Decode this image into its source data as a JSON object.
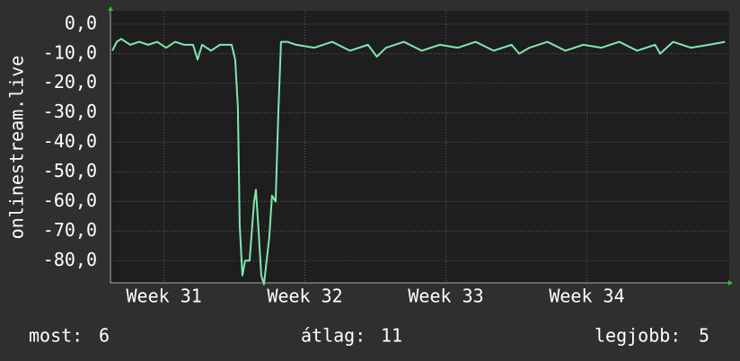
{
  "chart_data": {
    "type": "line",
    "y_label": "onlinestream.live",
    "xlim": [
      30.62,
      35.01
    ],
    "xticks": [
      {
        "value": 31,
        "label": "Week 31"
      },
      {
        "value": 32,
        "label": "Week 32"
      },
      {
        "value": 33,
        "label": "Week 33"
      },
      {
        "value": 34,
        "label": "Week 34"
      }
    ],
    "ylim": [
      -87.5,
      4.5
    ],
    "yticks": [
      {
        "value": 0,
        "label": "0,0"
      },
      {
        "value": -10,
        "label": "-10,0"
      },
      {
        "value": -20,
        "label": "-20,0"
      },
      {
        "value": -30,
        "label": "-30,0"
      },
      {
        "value": -40,
        "label": "-40,0"
      },
      {
        "value": -50,
        "label": "-50,0"
      },
      {
        "value": -60,
        "label": "-60,0"
      },
      {
        "value": -70,
        "label": "-70,0"
      },
      {
        "value": -80,
        "label": "-80,0"
      }
    ],
    "grid": true,
    "x": [
      30.633,
      30.665,
      30.696,
      30.76,
      30.824,
      30.888,
      30.951,
      31.015,
      31.079,
      31.142,
      31.206,
      31.238,
      31.27,
      31.333,
      31.397,
      31.48,
      31.505,
      31.524,
      31.537,
      31.556,
      31.575,
      31.607,
      31.639,
      31.652,
      31.671,
      31.69,
      31.709,
      31.728,
      31.747,
      31.766,
      31.792,
      31.811,
      31.83,
      31.875,
      31.938,
      32.065,
      32.193,
      32.32,
      32.447,
      32.51,
      32.575,
      32.702,
      32.829,
      32.957,
      33.084,
      33.211,
      33.339,
      33.466,
      33.52,
      33.593,
      33.72,
      33.848,
      33.975,
      34.102,
      34.23,
      34.357,
      34.484,
      34.52,
      34.612,
      34.739,
      34.866,
      34.98
    ],
    "series": [
      {
        "name": "onlinestream.live",
        "color": "#7fe8b0",
        "values": [
          -9,
          -6,
          -5,
          -7,
          -6,
          -7,
          -6,
          -8,
          -6,
          -7,
          -7,
          -12,
          -7,
          -9,
          -7,
          -7,
          -12,
          -28,
          -68,
          -85,
          -80,
          -80,
          -60,
          -56,
          -70,
          -85,
          -88,
          -80,
          -72,
          -58,
          -60,
          -30,
          -6,
          -6,
          -7,
          -8,
          -6,
          -9,
          -7,
          -11,
          -8,
          -6,
          -9,
          -7,
          -8,
          -6,
          -9,
          -7,
          -10,
          -8,
          -6,
          -9,
          -7,
          -8,
          -6,
          -9,
          -7,
          -10,
          -6,
          -8,
          -7,
          -6
        ]
      }
    ]
  },
  "footer": {
    "current": {
      "label": "most:",
      "value": "6"
    },
    "average": {
      "label": "átlag:",
      "value": "11"
    },
    "best": {
      "label": "legjobb:",
      "value": "5"
    }
  }
}
